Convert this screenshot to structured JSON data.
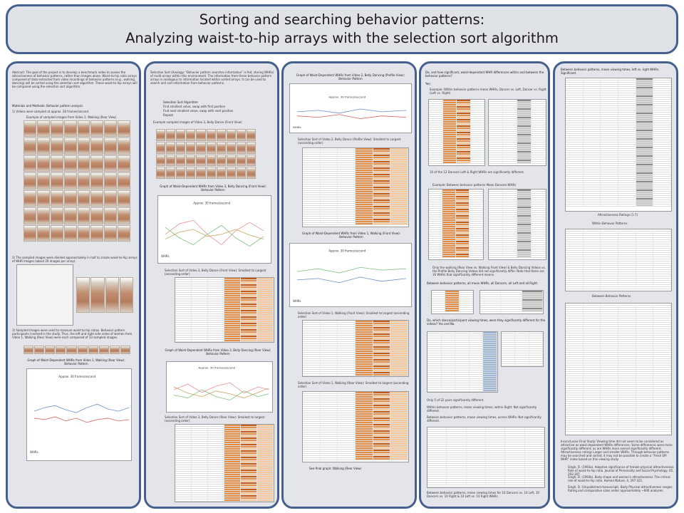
{
  "title": {
    "line1": "Sorting and searching behavior patterns:",
    "line2": "Analyzing waist-to-hip arrays with the selection sort algorithm"
  },
  "panel1": {
    "abstract": "Abstract: The goal of the project is to develop a benchmark index to assess the attractiveness of behavior patterns, rather than images alone. Waist-to-hip ratio arrays composed of data extracted from video recordings of behavior patterns (e.g., walking, dancing) will be sorted using the selection sort algorithm. These waist-to-hip arrays will be compared using the selection sort algorithm.",
    "materials_heading": "Materials and Methods: Behavior pattern analysis",
    "step1": "1) Videos were sampled at approx. 30 frames/second.",
    "grid_caption": "Example of sampled images from Video 1, Walking (Rear View)",
    "step2": "2) The sampled images were divided approximately in half to create waist-to-hip arrays of WHR images (about 20 images per array).",
    "step3": "3) Sampled images were used to measure waist-to-hip ratios. Behavior pattern participants involved in the study. Thus, the left and right side video of women from Video 1, Walking (Rear View) were each composed of 33 sampled images.",
    "graph_caption": "Graph of Waist-Dependent WHRs from Video 1, Walking (Rear View): Behavior Pattern",
    "chart_label": "Approx. 30 frames/second",
    "y_label": "WHRs"
  },
  "panel2": {
    "intro": "Selection Sort (Analogy: \"Behavior pattern searches information\" is fed, storing WHRs) of multi-arrays within this environment. The information from these behavior pattern arrays is analogous to information located within sorted arrays. It can be used to search and sort information from behavior patterns.",
    "algorithm_heading": "Selection Sort Algorithm",
    "alg_line1": "Find smallest value, swap with first position",
    "alg_line2": "Find next smallest value, swap with next position",
    "alg_line3": "Repeat",
    "grid_caption": "Example sampled images of Video 3, Belly Dance (Front View)",
    "graph1_caption": "Graph of Waist-Dependent WHRs from Video 3, Belly Dancing (Front View): Behavior Pattern",
    "chart_label": "Approx. 30 frames/second",
    "y_label": "WHRs",
    "sort1_caption": "Selection Sort of Video 3, Belly Dance (Front View): Smallest to Largest (ascending order)",
    "graph2_caption": "Graph of Waist-Dependent WHRs from Video 3, Belly Dancing (Rear View): Behavior Pattern",
    "sort2_caption": "Selection Sort of Video 3, Belly Dance (Rear View): Smallest to largest (ascending order)"
  },
  "panel3": {
    "graph1_caption": "Graph of Waist-Dependent WHRs from Video 2, Belly Dancing (Profile View): Behavior Pattern",
    "chart_label": "Approx. 30 frames/second",
    "y_label": "WHRs",
    "sort1_caption": "Selection Sort of Video 2, Belly Dance (Profile View): Smallest to Largest (ascending order)",
    "graph2_caption": "Graph of Waist-Dependent WHRs from Video 1, Walking (Front View): Behavior Pattern",
    "sort2_caption": "Selection Sort of Video 1, Walking (Front View): Smallest to largest (ascending order)",
    "sort3_caption": "Selection Sort of Video 1, Walking (Rear View): Smallest to largest (ascending order)",
    "footer": "See final graph: Walking (Rear View)"
  },
  "panel4": {
    "question": "Do, and how significant, waist-dependent WHR differences within and between the behavior patterns?",
    "yes": "Yes:",
    "example_text": "Example: Within behavior patterns mean WHRs, Dancer vs. Left, Dancer vs. Right (Left vs. Right)",
    "significant_note": "10 of the 12 Dancers Left & Right WHRs are significantly different.",
    "example2": "Example: Between behavior patterns Mean Dancers-WHRs",
    "walking_note": "Only the walking (Rear View vs. Walking Front View) & Belly Dancing Videos vs. the Profile Belly Dancing Videos did not significantly differ. Note that there are 16 WHRs that significantly different means.",
    "between_heading": "Between behavior patterns, all mean WHRs, all Dancers, all Left and all Right:",
    "dominant_question": "Do, which dance/participant viewing times, were they significantly different for the videos? Yes and No.",
    "significant_note2": "Only 5 of 22 pairs significantly different.",
    "within_means": "Within behavior patterns, mean viewing times, within Right: Not significantly different.",
    "between_means": "Between behavior patterns, mean viewing times, across WHRs: Not significantly different.",
    "footer": "Between behavior patterns, mean viewing times for 10 Dancers vs. 10 Left, 10 Dancers vs. 10 Right & 10 Left vs. 10 Right WHRs."
  },
  "panel5": {
    "heading": "Between behavior patterns, mean viewing times, left vs. right WHRs. Significant.",
    "ratings_caption": "Attractiveness Ratings (1-7)",
    "within_caption": "Within Behavior Patterns",
    "between_caption": "Between Behavior Patterns",
    "conclusions": "Inconclusive Final Study: Viewing time did not seem to be considered as attractive as waist-dependent WHRs differences. Some differences were more significantly different, as are WHRs more overall significantly different. Attractiveness ratings Larger and smaller WHRs. Through behavior patterns may be searched and sorted, it may not be possible to create a “Fresh SPI WHR” index based on this viewing study.",
    "ref1": "Singh, D. (1993a). Adaptive significance of female physical attractiveness: Role of waist-to-hip ratio. Journal of Personality and Social Psychology, 65, 293-307.",
    "ref2": "Singh, D. (1993b). Body shape and women's attractiveness: The critical role of waist-to-hip ratio. Human Nature, 4, 297-321.",
    "ref3": "Singh, D. (Unpublished manuscript). Body Physical attractiveness ranges: Rating and comparative sizes under approximately ~600 analyses."
  }
}
